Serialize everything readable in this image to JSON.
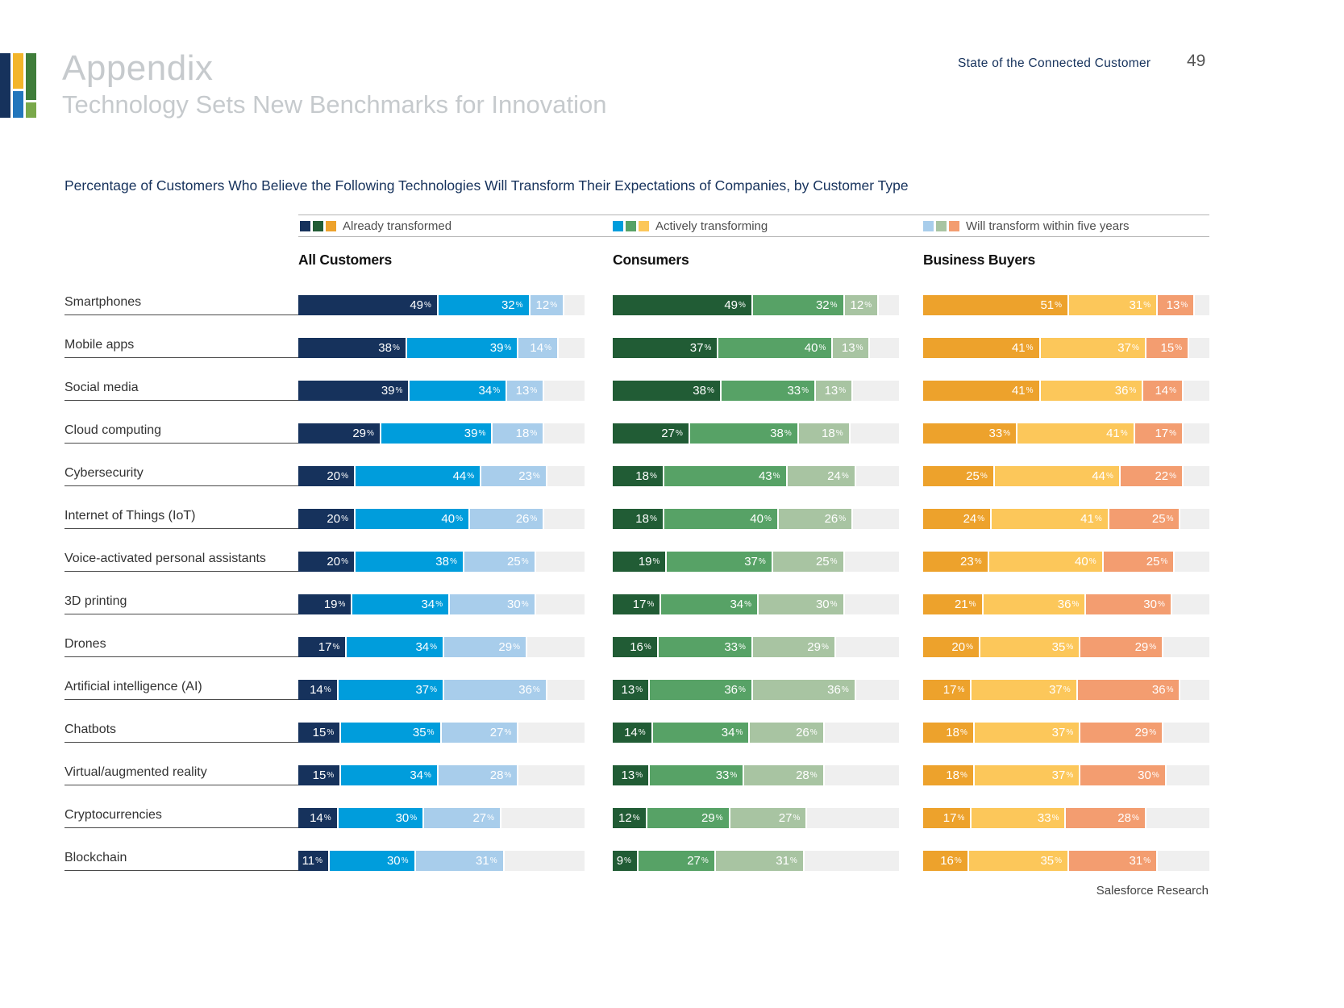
{
  "header": {
    "title": "Appendix",
    "subtitle": "Technology Sets New Benchmarks for Innovation",
    "brand": "State of the Connected Customer",
    "page_number": "49"
  },
  "chart_title": "Percentage of Customers Who Believe the Following Technologies Will Transform Their Expectations of Companies, by Customer Type",
  "footer": "Salesforce Research",
  "legend": [
    {
      "label": "Already transformed",
      "colors": [
        "#16325c",
        "#215c35",
        "#eda22c"
      ]
    },
    {
      "label": "Actively transforming",
      "colors": [
        "#009ddc",
        "#57a266",
        "#fcc75a"
      ]
    },
    {
      "label": "Will transform within five years",
      "colors": [
        "#a8cdeb",
        "#a8c4a2",
        "#f39d70"
      ]
    }
  ],
  "chart_data": {
    "type": "bar",
    "orientation": "horizontal",
    "stacked": true,
    "unit": "%",
    "axis_max": 100,
    "track_color": "#efefef",
    "categories": [
      "Smartphones",
      "Mobile apps",
      "Social media",
      "Cloud computing",
      "Cybersecurity",
      "Internet of Things (IoT)",
      "Voice-activated personal assistants",
      "3D printing",
      "Drones",
      "Artificial intelligence (AI)",
      "Chatbots",
      "Virtual/augmented reality",
      "Cryptocurrencies",
      "Blockchain"
    ],
    "groups": [
      {
        "name": "All Customers",
        "colors": [
          "#16325c",
          "#009ddc",
          "#a8cdeb"
        ],
        "series": [
          {
            "name": "Already transformed",
            "values": [
              49,
              38,
              39,
              29,
              20,
              20,
              20,
              19,
              17,
              14,
              15,
              15,
              14,
              11
            ]
          },
          {
            "name": "Actively transforming",
            "values": [
              32,
              39,
              34,
              39,
              44,
              40,
              38,
              34,
              34,
              37,
              35,
              34,
              30,
              30
            ]
          },
          {
            "name": "Will transform within five years",
            "values": [
              12,
              14,
              13,
              18,
              23,
              26,
              25,
              30,
              29,
              36,
              27,
              28,
              27,
              31
            ]
          }
        ]
      },
      {
        "name": "Consumers",
        "colors": [
          "#215c35",
          "#57a266",
          "#a8c4a2"
        ],
        "series": [
          {
            "name": "Already transformed",
            "values": [
              49,
              37,
              38,
              27,
              18,
              18,
              19,
              17,
              16,
              13,
              14,
              13,
              12,
              9
            ]
          },
          {
            "name": "Actively transforming",
            "values": [
              32,
              40,
              33,
              38,
              43,
              40,
              37,
              34,
              33,
              36,
              34,
              33,
              29,
              27
            ]
          },
          {
            "name": "Will transform within five years",
            "values": [
              12,
              13,
              13,
              18,
              24,
              26,
              25,
              30,
              29,
              36,
              26,
              28,
              27,
              31
            ]
          }
        ]
      },
      {
        "name": "Business Buyers",
        "colors": [
          "#eda22c",
          "#fcc75a",
          "#f39d70"
        ],
        "series": [
          {
            "name": "Already transformed",
            "values": [
              51,
              41,
              41,
              33,
              25,
              24,
              23,
              21,
              20,
              17,
              18,
              18,
              17,
              16
            ]
          },
          {
            "name": "Actively transforming",
            "values": [
              31,
              37,
              36,
              41,
              44,
              41,
              40,
              36,
              35,
              37,
              37,
              37,
              33,
              35
            ]
          },
          {
            "name": "Will transform within five years",
            "values": [
              13,
              15,
              14,
              17,
              22,
              25,
              25,
              30,
              29,
              36,
              29,
              30,
              28,
              31
            ]
          }
        ]
      }
    ]
  }
}
